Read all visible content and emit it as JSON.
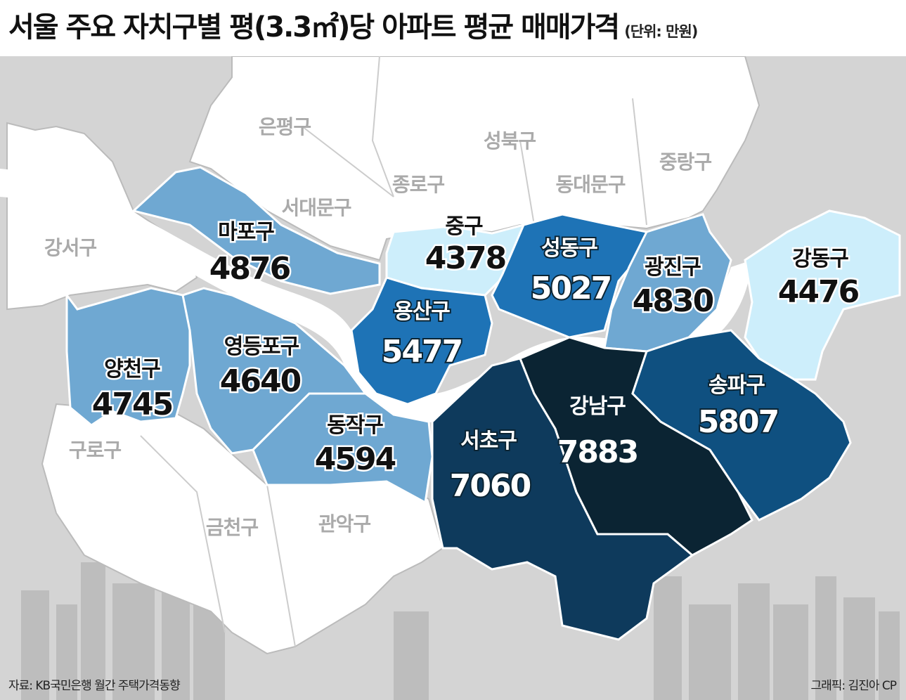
{
  "title": "서울 주요 자치구별 평(3.3㎡)당 아파트 평균 매매가격",
  "unit": "(단위: 만원)",
  "source": "자료: KB국민은행 월간 주택가격동향",
  "credit": "그래픽: 김진아 CP",
  "colors": {
    "background": "#d4d4d4",
    "no_data": "#ffffff",
    "river": "#ffffff",
    "border": "#bbbbbb",
    "scale": [
      "#cdeefb",
      "#9fcbe6",
      "#6fa8d2",
      "#1e73b6",
      "#0f5080",
      "#0e3a5c",
      "#0b2433"
    ]
  },
  "districts_no_data": [
    "은평구",
    "성북구",
    "종로구",
    "중랑구",
    "서대문구",
    "동대문구",
    "강서구",
    "구로구",
    "금천구",
    "관악구"
  ],
  "districts": [
    {
      "name": "마포구",
      "value": "4876"
    },
    {
      "name": "중구",
      "value": "4378"
    },
    {
      "name": "성동구",
      "value": "5027"
    },
    {
      "name": "광진구",
      "value": "4830"
    },
    {
      "name": "강동구",
      "value": "4476"
    },
    {
      "name": "용산구",
      "value": "5477"
    },
    {
      "name": "영등포구",
      "value": "4640"
    },
    {
      "name": "양천구",
      "value": "4745"
    },
    {
      "name": "동작구",
      "value": "4594"
    },
    {
      "name": "서초구",
      "value": "7060"
    },
    {
      "name": "강남구",
      "value": "7883"
    },
    {
      "name": "송파구",
      "value": "5807"
    }
  ]
}
